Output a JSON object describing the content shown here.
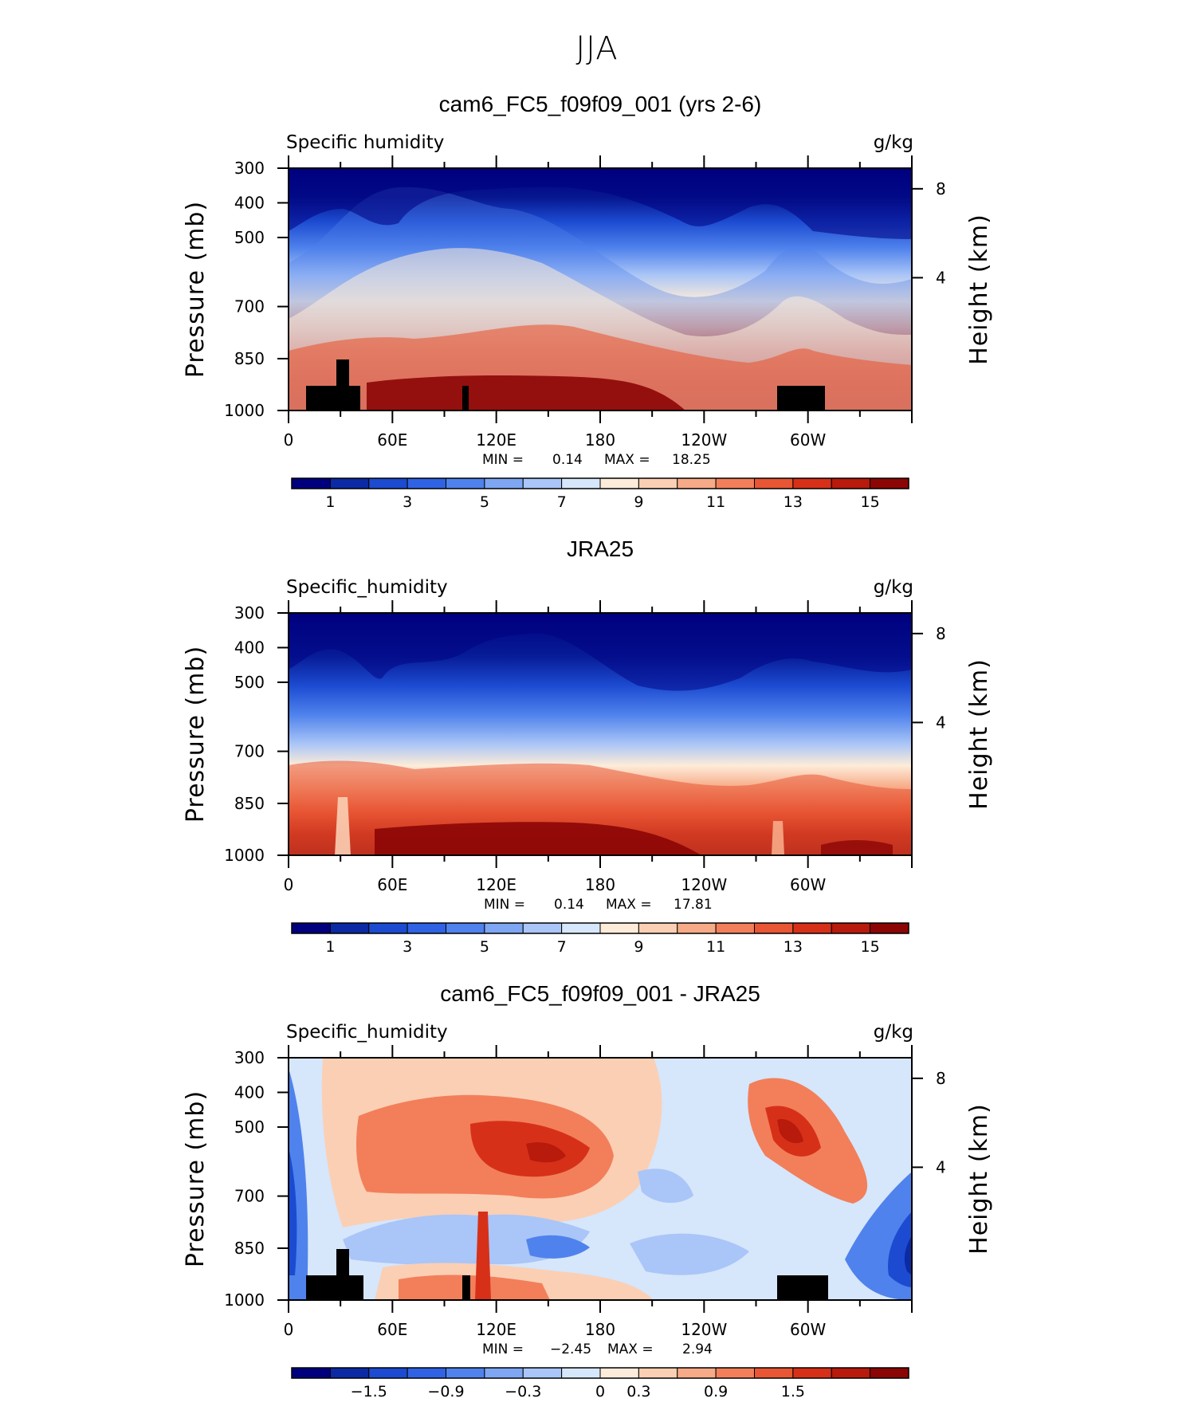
{
  "figure": {
    "title": "JJA"
  },
  "chart_data": [
    {
      "type": "heatmap",
      "title": "cam6_FC5_f09f09_001 (yrs 2-6)",
      "left_label": "Specific humidity",
      "units": "g/kg",
      "ylabel": "Pressure (mb)",
      "ylabel_right": "Height (km)",
      "x_ticks": [
        "0",
        "60E",
        "120E",
        "180",
        "120W",
        "60W"
      ],
      "y_ticks": [
        "300",
        "400",
        "500",
        "700",
        "850",
        "1000"
      ],
      "y_ticks_right": [
        "8",
        "4"
      ],
      "min_label": "MIN =",
      "min": "0.14",
      "max_label": "MAX =",
      "max": "18.25",
      "colorbar_ticks": [
        "1",
        "3",
        "5",
        "7",
        "9",
        "11",
        "13",
        "15"
      ]
    },
    {
      "type": "heatmap",
      "title": "JRA25",
      "left_label": "Specific_humidity",
      "units": "g/kg",
      "ylabel": "Pressure (mb)",
      "ylabel_right": "Height (km)",
      "x_ticks": [
        "0",
        "60E",
        "120E",
        "180",
        "120W",
        "60W"
      ],
      "y_ticks": [
        "300",
        "400",
        "500",
        "700",
        "850",
        "1000"
      ],
      "y_ticks_right": [
        "8",
        "4"
      ],
      "min_label": "MIN =",
      "min": "0.14",
      "max_label": "MAX =",
      "max": "17.81",
      "colorbar_ticks": [
        "1",
        "3",
        "5",
        "7",
        "9",
        "11",
        "13",
        "15"
      ]
    },
    {
      "type": "heatmap",
      "title": "cam6_FC5_f09f09_001 - JRA25",
      "left_label": "Specific_humidity",
      "units": "g/kg",
      "ylabel": "Pressure (mb)",
      "ylabel_right": "Height (km)",
      "x_ticks": [
        "0",
        "60E",
        "120E",
        "180",
        "120W",
        "60W"
      ],
      "y_ticks": [
        "300",
        "400",
        "500",
        "700",
        "850",
        "1000"
      ],
      "y_ticks_right": [
        "8",
        "4"
      ],
      "min_label": "MIN =",
      "min": "−2.45",
      "max_label": "MAX =",
      "max": "2.94",
      "colorbar_ticks": [
        "−1.5",
        "−0.9",
        "−0.3",
        "0",
        "0.3",
        "0.9",
        "1.5"
      ]
    }
  ],
  "colors": {
    "palette": [
      "#00007f",
      "#0b2aa4",
      "#1c4bd1",
      "#2f63e4",
      "#4f82ec",
      "#7ea6f3",
      "#aac5f7",
      "#d6e6fb",
      "#fdecd9",
      "#fbcfb4",
      "#f7aa87",
      "#f27f5a",
      "#e85634",
      "#d73019",
      "#b81a0c",
      "#8c0505"
    ],
    "terrain": "#000000"
  }
}
